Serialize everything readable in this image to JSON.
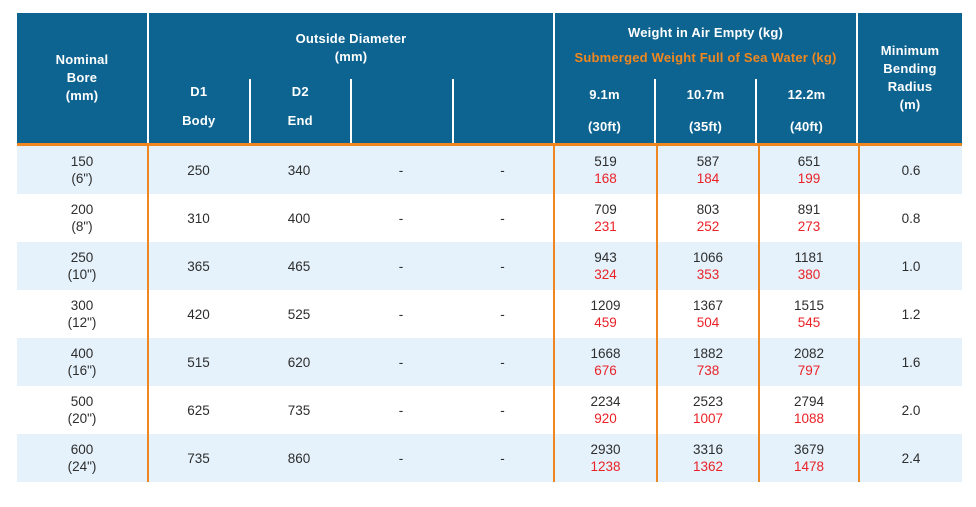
{
  "colors": {
    "header_blue": "#0D6491",
    "accent_orange": "#F0861F",
    "submerged_red": "#EA2127",
    "row_alt_blue": "#E5F2FB",
    "text_dark": "#2d2d2d"
  },
  "header": {
    "nominal_bore_lines": [
      "Nominal",
      "Bore",
      "(mm)"
    ],
    "outside_diameter": {
      "title": "Outside Diameter",
      "unit": "(mm)"
    },
    "od_subcols": [
      {
        "code": "D1",
        "label": "Body"
      },
      {
        "code": "D2",
        "label": "End"
      },
      {
        "code": "",
        "label": ""
      },
      {
        "code": "",
        "label": ""
      }
    ],
    "weight": {
      "air_title": "Weight in Air Empty (kg)",
      "submerged_title": "Submerged Weight Full of Sea Water (kg)",
      "columns": [
        {
          "length": "9.1m",
          "feet": "(30ft)"
        },
        {
          "length": "10.7m",
          "feet": "(35ft)"
        },
        {
          "length": "12.2m",
          "feet": "(40ft)"
        }
      ]
    },
    "min_bending_lines": [
      "Minimum",
      "Bending",
      "Radius",
      "(m)"
    ]
  },
  "rows": [
    {
      "bore_mm": "150",
      "bore_in": "(6\")",
      "d1": "250",
      "d2": "340",
      "od3": "-",
      "od4": "-",
      "weights": [
        {
          "air": "519",
          "submerged": "168"
        },
        {
          "air": "587",
          "submerged": "184"
        },
        {
          "air": "651",
          "submerged": "199"
        }
      ],
      "radius": "0.6"
    },
    {
      "bore_mm": "200",
      "bore_in": "(8\")",
      "d1": "310",
      "d2": "400",
      "od3": "-",
      "od4": "-",
      "weights": [
        {
          "air": "709",
          "submerged": "231"
        },
        {
          "air": "803",
          "submerged": "252"
        },
        {
          "air": "891",
          "submerged": "273"
        }
      ],
      "radius": "0.8"
    },
    {
      "bore_mm": "250",
      "bore_in": "(10\")",
      "d1": "365",
      "d2": "465",
      "od3": "-",
      "od4": "-",
      "weights": [
        {
          "air": "943",
          "submerged": "324"
        },
        {
          "air": "1066",
          "submerged": "353"
        },
        {
          "air": "1181",
          "submerged": "380"
        }
      ],
      "radius": "1.0"
    },
    {
      "bore_mm": "300",
      "bore_in": "(12\")",
      "d1": "420",
      "d2": "525",
      "od3": "-",
      "od4": "-",
      "weights": [
        {
          "air": "1209",
          "submerged": "459"
        },
        {
          "air": "1367",
          "submerged": "504"
        },
        {
          "air": "1515",
          "submerged": "545"
        }
      ],
      "radius": "1.2"
    },
    {
      "bore_mm": "400",
      "bore_in": "(16\")",
      "d1": "515",
      "d2": "620",
      "od3": "-",
      "od4": "-",
      "weights": [
        {
          "air": "1668",
          "submerged": "676"
        },
        {
          "air": "1882",
          "submerged": "738"
        },
        {
          "air": "2082",
          "submerged": "797"
        }
      ],
      "radius": "1.6"
    },
    {
      "bore_mm": "500",
      "bore_in": "(20\")",
      "d1": "625",
      "d2": "735",
      "od3": "-",
      "od4": "-",
      "weights": [
        {
          "air": "2234",
          "submerged": "920"
        },
        {
          "air": "2523",
          "submerged": "1007"
        },
        {
          "air": "2794",
          "submerged": "1088"
        }
      ],
      "radius": "2.0"
    },
    {
      "bore_mm": "600",
      "bore_in": "(24\")",
      "d1": "735",
      "d2": "860",
      "od3": "-",
      "od4": "-",
      "weights": [
        {
          "air": "2930",
          "submerged": "1238"
        },
        {
          "air": "3316",
          "submerged": "1362"
        },
        {
          "air": "3679",
          "submerged": "1478"
        }
      ],
      "radius": "2.4"
    }
  ]
}
